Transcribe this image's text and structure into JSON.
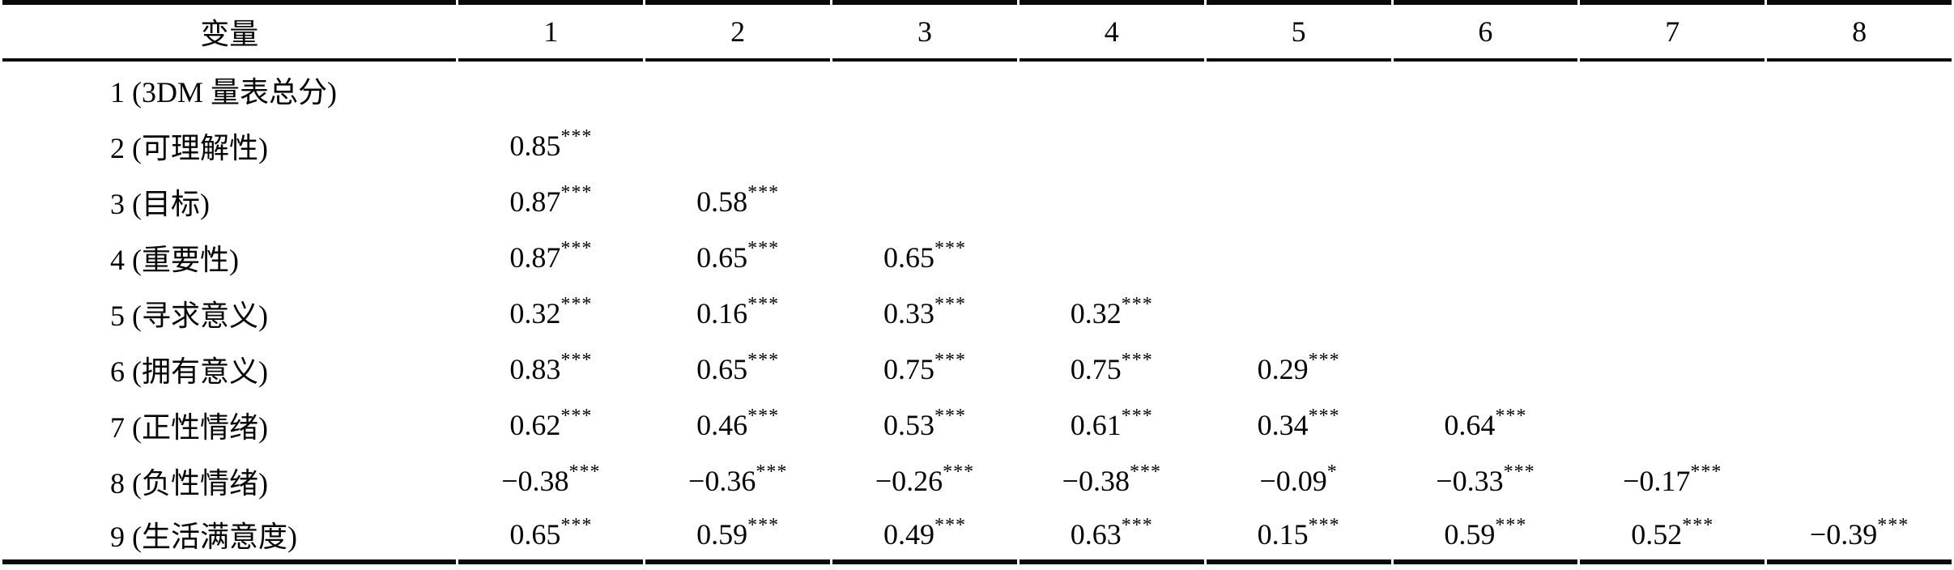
{
  "table": {
    "header": {
      "variable": "变量",
      "columns": [
        "1",
        "2",
        "3",
        "4",
        "5",
        "6",
        "7",
        "8"
      ]
    },
    "rows": [
      {
        "label": "1 (3DM 量表总分)",
        "values": [
          {
            "v": "",
            "sig": ""
          },
          {
            "v": "",
            "sig": ""
          },
          {
            "v": "",
            "sig": ""
          },
          {
            "v": "",
            "sig": ""
          },
          {
            "v": "",
            "sig": ""
          },
          {
            "v": "",
            "sig": ""
          },
          {
            "v": "",
            "sig": ""
          },
          {
            "v": "",
            "sig": ""
          }
        ]
      },
      {
        "label": "2 (可理解性)",
        "values": [
          {
            "v": "0.85",
            "sig": "***"
          },
          {
            "v": "",
            "sig": ""
          },
          {
            "v": "",
            "sig": ""
          },
          {
            "v": "",
            "sig": ""
          },
          {
            "v": "",
            "sig": ""
          },
          {
            "v": "",
            "sig": ""
          },
          {
            "v": "",
            "sig": ""
          },
          {
            "v": "",
            "sig": ""
          }
        ]
      },
      {
        "label": "3 (目标)",
        "values": [
          {
            "v": "0.87",
            "sig": "***"
          },
          {
            "v": "0.58",
            "sig": "***"
          },
          {
            "v": "",
            "sig": ""
          },
          {
            "v": "",
            "sig": ""
          },
          {
            "v": "",
            "sig": ""
          },
          {
            "v": "",
            "sig": ""
          },
          {
            "v": "",
            "sig": ""
          },
          {
            "v": "",
            "sig": ""
          }
        ]
      },
      {
        "label": "4 (重要性)",
        "values": [
          {
            "v": "0.87",
            "sig": "***"
          },
          {
            "v": "0.65",
            "sig": "***"
          },
          {
            "v": "0.65",
            "sig": "***"
          },
          {
            "v": "",
            "sig": ""
          },
          {
            "v": "",
            "sig": ""
          },
          {
            "v": "",
            "sig": ""
          },
          {
            "v": "",
            "sig": ""
          },
          {
            "v": "",
            "sig": ""
          }
        ]
      },
      {
        "label": "5 (寻求意义)",
        "values": [
          {
            "v": "0.32",
            "sig": "***"
          },
          {
            "v": "0.16",
            "sig": "***"
          },
          {
            "v": "0.33",
            "sig": "***"
          },
          {
            "v": "0.32",
            "sig": "***"
          },
          {
            "v": "",
            "sig": ""
          },
          {
            "v": "",
            "sig": ""
          },
          {
            "v": "",
            "sig": ""
          },
          {
            "v": "",
            "sig": ""
          }
        ]
      },
      {
        "label": "6 (拥有意义)",
        "values": [
          {
            "v": "0.83",
            "sig": "***"
          },
          {
            "v": "0.65",
            "sig": "***"
          },
          {
            "v": "0.75",
            "sig": "***"
          },
          {
            "v": "0.75",
            "sig": "***"
          },
          {
            "v": "0.29",
            "sig": "***"
          },
          {
            "v": "",
            "sig": ""
          },
          {
            "v": "",
            "sig": ""
          },
          {
            "v": "",
            "sig": ""
          }
        ]
      },
      {
        "label": "7 (正性情绪)",
        "values": [
          {
            "v": "0.62",
            "sig": "***"
          },
          {
            "v": "0.46",
            "sig": "***"
          },
          {
            "v": "0.53",
            "sig": "***"
          },
          {
            "v": "0.61",
            "sig": "***"
          },
          {
            "v": "0.34",
            "sig": "***"
          },
          {
            "v": "0.64",
            "sig": "***"
          },
          {
            "v": "",
            "sig": ""
          },
          {
            "v": "",
            "sig": ""
          }
        ]
      },
      {
        "label": "8 (负性情绪)",
        "values": [
          {
            "v": "−0.38",
            "sig": "***"
          },
          {
            "v": "−0.36",
            "sig": "***"
          },
          {
            "v": "−0.26",
            "sig": "***"
          },
          {
            "v": "−0.38",
            "sig": "***"
          },
          {
            "v": "−0.09",
            "sig": "*"
          },
          {
            "v": "−0.33",
            "sig": "***"
          },
          {
            "v": "−0.17",
            "sig": "***"
          },
          {
            "v": "",
            "sig": ""
          }
        ]
      },
      {
        "label": "9 (生活满意度)",
        "values": [
          {
            "v": "0.65",
            "sig": "***"
          },
          {
            "v": "0.59",
            "sig": "***"
          },
          {
            "v": "0.49",
            "sig": "***"
          },
          {
            "v": "0.63",
            "sig": "***"
          },
          {
            "v": "0.15",
            "sig": "***"
          },
          {
            "v": "0.59",
            "sig": "***"
          },
          {
            "v": "0.52",
            "sig": "***"
          },
          {
            "v": "−0.39",
            "sig": "***"
          }
        ]
      }
    ]
  }
}
